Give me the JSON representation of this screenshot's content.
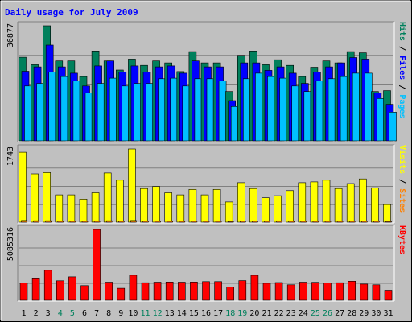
{
  "chart_data": {
    "type": "bar",
    "title": "Daily usage for July 2009",
    "colors": {
      "hits": "#00805c",
      "files": "#0000ff",
      "pages": "#00c0ff",
      "visits": "#ffff00",
      "sites": "#ff8000",
      "kbytes": "#ff0000",
      "title": "#0000ff",
      "weekend": "#00805c",
      "weekday": "#000000",
      "background": "#c0c0c0",
      "plot": "#c0c0c0"
    },
    "categories": [
      "1",
      "2",
      "3",
      "4",
      "5",
      "6",
      "7",
      "8",
      "9",
      "10",
      "11",
      "12",
      "13",
      "14",
      "15",
      "16",
      "17",
      "18",
      "19",
      "20",
      "21",
      "22",
      "23",
      "24",
      "25",
      "26",
      "27",
      "28",
      "29",
      "30",
      "31"
    ],
    "weekend_days": [
      "4",
      "5",
      "11",
      "12",
      "18",
      "19",
      "25",
      "26"
    ],
    "panels": [
      {
        "id": "hits-files-pages",
        "ylabel": [
          "Pages",
          "Files",
          "Hits"
        ],
        "ylabel_colors": [
          "#00c0ff",
          "#0000ff",
          "#00805c"
        ],
        "ymax_label": "36877",
        "ymax": 36877,
        "series": [
          {
            "name": "Hits",
            "color": "#00805c",
            "values": [
              26800,
              24400,
              36877,
              25600,
              25600,
              20600,
              28800,
              25600,
              22700,
              26200,
              24200,
              25600,
              25000,
              22200,
              28600,
              25000,
              25000,
              15800,
              27400,
              28800,
              24400,
              26000,
              24200,
              20600,
              23600,
              25600,
              25000,
              28600,
              28200,
              15800,
              16100
            ]
          },
          {
            "name": "Files",
            "color": "#0000ff",
            "values": [
              22300,
              23700,
              30700,
              23700,
              21700,
              17600,
              24000,
              25600,
              22000,
              24000,
              22000,
              23700,
              24000,
              21700,
              25600,
              23700,
              23700,
              12900,
              25000,
              25000,
              22600,
              23700,
              21700,
              18400,
              22000,
              23700,
              25000,
              26700,
              26200,
              15300,
              11700
            ]
          },
          {
            "name": "Pages",
            "color": "#00c0ff",
            "values": [
              17600,
              18400,
              22000,
              20600,
              19200,
              15300,
              18400,
              20100,
              17600,
              18400,
              18400,
              19900,
              20100,
              17600,
              19900,
              19900,
              19200,
              11000,
              19900,
              21700,
              20600,
              20100,
              17600,
              15800,
              19200,
              19900,
              20600,
              21700,
              21700,
              13600,
              9200
            ]
          }
        ]
      },
      {
        "id": "visits-sites",
        "ylabel": [
          "Sites",
          "Visits"
        ],
        "ylabel_colors": [
          "#ff8000",
          "#ffff00"
        ],
        "ymax_label": "1743",
        "ymax": 1743,
        "series": [
          {
            "name": "Visits",
            "color": "#ffff00",
            "values": [
              1665,
              1150,
              1180,
              650,
              650,
              550,
              700,
              1170,
              1000,
              1743,
              800,
              850,
              700,
              650,
              780,
              650,
              780,
              480,
              940,
              800,
              580,
              630,
              750,
              940,
              960,
              1000,
              800,
              920,
              1030,
              820,
              420
            ]
          },
          {
            "name": "Sites",
            "color": "#ff8000",
            "values": [
              40,
              35,
              35,
              25,
              25,
              25,
              30,
              35,
              30,
              40,
              30,
              30,
              25,
              25,
              30,
              25,
              30,
              20,
              30,
              30,
              25,
              25,
              25,
              30,
              30,
              30,
              30,
              30,
              30,
              30,
              20
            ]
          }
        ]
      },
      {
        "id": "kbytes",
        "ylabel": [
          "KBytes"
        ],
        "ylabel_colors": [
          "#ff0000"
        ],
        "ymax_label": "5085316",
        "ymax": 5085316,
        "series": [
          {
            "name": "KBytes",
            "color": "#ff0000",
            "values": [
              1240000,
              1600000,
              2150000,
              1400000,
              1680000,
              1050000,
              5085316,
              1300000,
              860000,
              1800000,
              1260000,
              1300000,
              1310000,
              1300000,
              1310000,
              1340000,
              1340000,
              950000,
              1410000,
              1790000,
              1220000,
              1270000,
              1110000,
              1300000,
              1290000,
              1230000,
              1260000,
              1370000,
              1160000,
              1110000,
              720000
            ]
          }
        ]
      }
    ]
  }
}
